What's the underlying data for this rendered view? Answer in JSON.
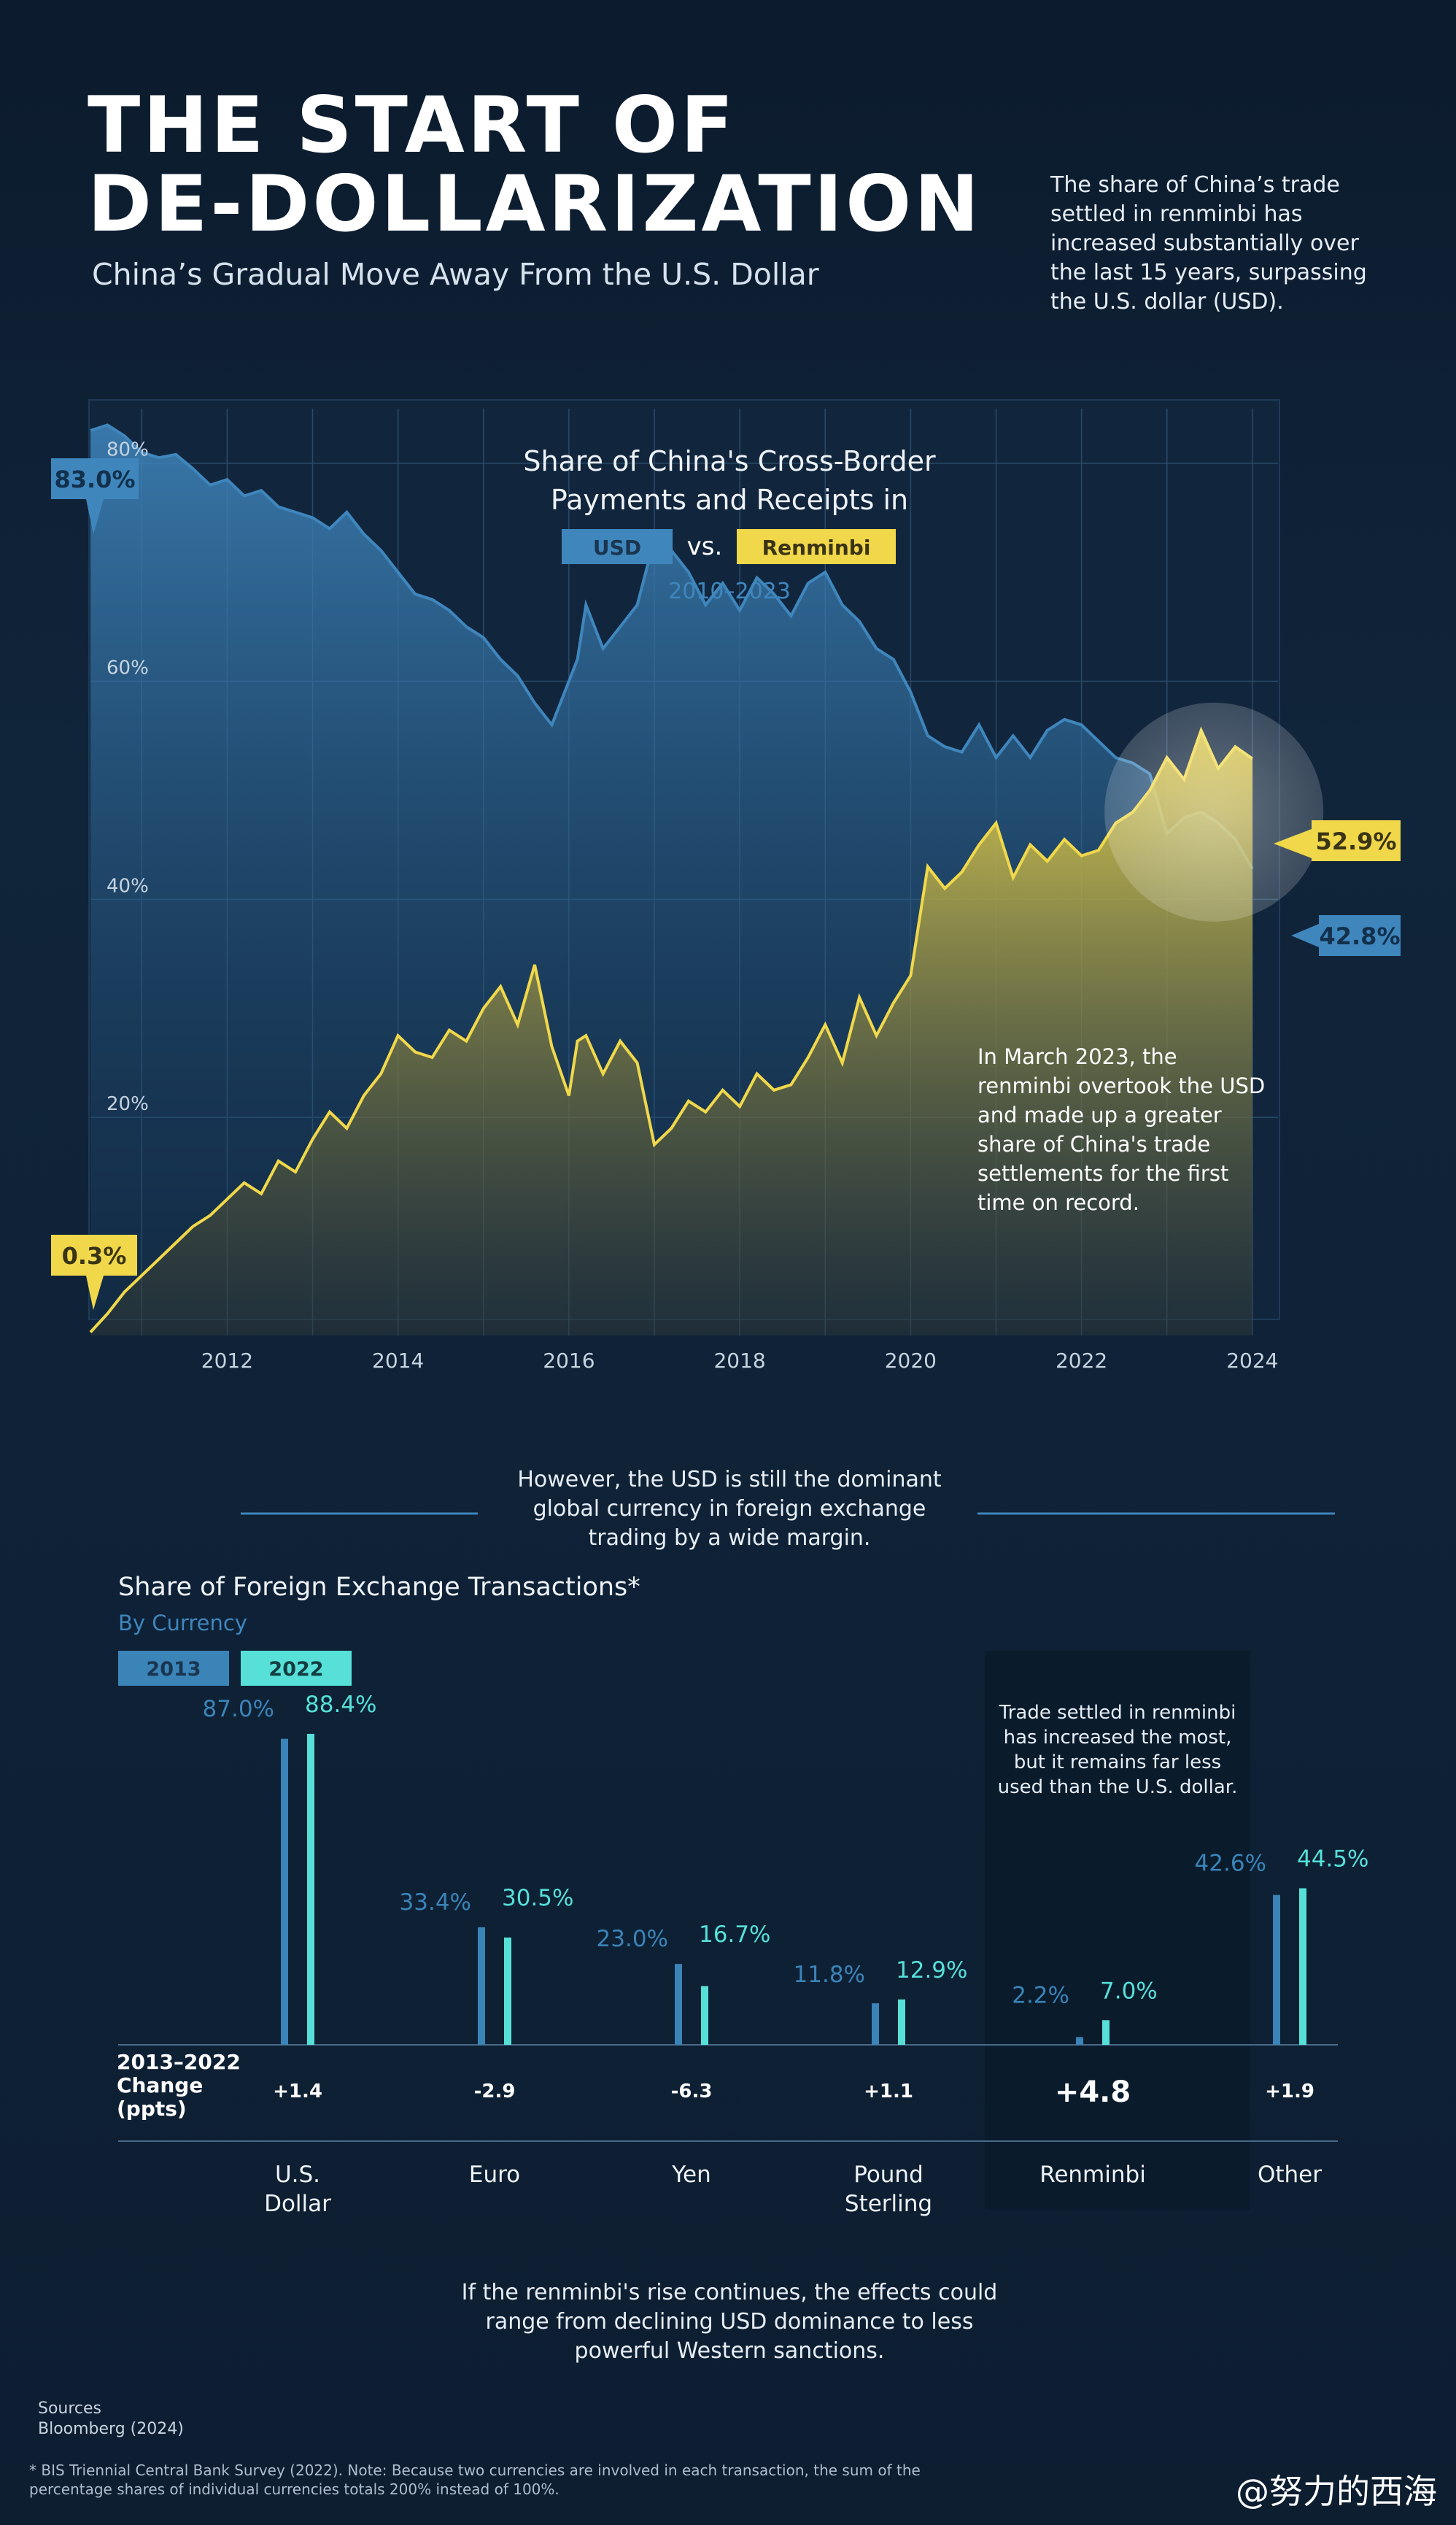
{
  "header": {
    "title_line1": "THE START OF",
    "title_line2": "DE-DOLLARIZATION",
    "subtitle": "China’s Gradual Move Away From the U.S. Dollar",
    "intro": "The share of China’s trade settled in renminbi has increased substantially over the last 15 years, surpassing the U.S. dollar (USD)."
  },
  "colors": {
    "usd": "#3f86bd",
    "renminbi": "#f0d84a",
    "yr2013": "#3a84b8",
    "yr2022": "#56e0d8",
    "background": "#0e2136"
  },
  "chart_data": [
    {
      "type": "area",
      "title_line1": "Share of China's Cross-Border",
      "title_line2": "Payments and Receipts in",
      "legend_usd": "USD",
      "legend_vs": "vs.",
      "legend_rmb": "Renminbi",
      "subtitle": "2010–2023",
      "xlim": [
        2010.4,
        2024.3
      ],
      "ylim": [
        0,
        85
      ],
      "yticks": [
        20,
        40,
        60,
        80
      ],
      "ytick_labels": [
        "20%",
        "40%",
        "60%",
        "80%"
      ],
      "xticks": [
        2012,
        2014,
        2016,
        2018,
        2020,
        2022,
        2024
      ],
      "xtick_labels": [
        "2012",
        "2014",
        "2016",
        "2018",
        "2020",
        "2022",
        "2024"
      ],
      "grid": true,
      "labels": {
        "usd_start": "83.0%",
        "rmb_start": "0.3%",
        "rmb_end": "52.9%",
        "usd_end": "42.8%"
      },
      "annotation": "In March 2023, the renminbi overtook the USD and made up a greater share of China's trade settlements for the first time on record.",
      "series": [
        {
          "name": "USD",
          "x": [
            2010.4,
            2010.6,
            2010.8,
            2011.0,
            2011.2,
            2011.4,
            2011.6,
            2011.8,
            2012.0,
            2012.2,
            2012.4,
            2012.6,
            2012.8,
            2013.0,
            2013.2,
            2013.4,
            2013.6,
            2013.8,
            2014.0,
            2014.2,
            2014.4,
            2014.6,
            2014.8,
            2015.0,
            2015.2,
            2015.4,
            2015.6,
            2015.8,
            2016.0,
            2016.1,
            2016.2,
            2016.4,
            2016.6,
            2016.8,
            2017.0,
            2017.2,
            2017.4,
            2017.6,
            2017.8,
            2018.0,
            2018.2,
            2018.4,
            2018.6,
            2018.8,
            2019.0,
            2019.2,
            2019.4,
            2019.6,
            2019.8,
            2020.0,
            2020.2,
            2020.4,
            2020.6,
            2020.8,
            2021.0,
            2021.2,
            2021.4,
            2021.6,
            2021.8,
            2022.0,
            2022.2,
            2022.4,
            2022.6,
            2022.8,
            2023.0,
            2023.2,
            2023.4,
            2023.6,
            2023.8,
            2024.0
          ],
          "values": [
            83.0,
            83.5,
            82.5,
            81.0,
            80.5,
            80.8,
            79.5,
            78.0,
            78.5,
            77.0,
            77.5,
            76.0,
            75.5,
            75.0,
            74.0,
            75.5,
            73.5,
            72.0,
            70.0,
            68.0,
            67.5,
            66.5,
            65.0,
            64.0,
            62.0,
            60.5,
            58.0,
            56.0,
            60.0,
            62.0,
            67.0,
            63.0,
            65.0,
            67.0,
            73.0,
            72.0,
            70.0,
            67.0,
            69.0,
            66.5,
            69.5,
            68.0,
            66.0,
            69.0,
            70.0,
            67.0,
            65.5,
            63.0,
            62.0,
            59.0,
            55.0,
            54.0,
            53.5,
            56.0,
            53.0,
            55.0,
            53.0,
            55.5,
            56.5,
            56.0,
            54.5,
            53.0,
            52.5,
            51.5,
            46.0,
            47.5,
            48.0,
            47.0,
            45.5,
            42.8
          ]
        },
        {
          "name": "Renminbi",
          "x": [
            2010.4,
            2010.6,
            2010.8,
            2011.0,
            2011.2,
            2011.4,
            2011.6,
            2011.8,
            2012.0,
            2012.2,
            2012.4,
            2012.6,
            2012.8,
            2013.0,
            2013.2,
            2013.4,
            2013.6,
            2013.8,
            2014.0,
            2014.2,
            2014.4,
            2014.6,
            2014.8,
            2015.0,
            2015.2,
            2015.4,
            2015.6,
            2015.8,
            2016.0,
            2016.1,
            2016.2,
            2016.4,
            2016.6,
            2016.8,
            2017.0,
            2017.2,
            2017.4,
            2017.6,
            2017.8,
            2018.0,
            2018.2,
            2018.4,
            2018.6,
            2018.8,
            2019.0,
            2019.2,
            2019.4,
            2019.6,
            2019.8,
            2020.0,
            2020.2,
            2020.4,
            2020.6,
            2020.8,
            2021.0,
            2021.2,
            2021.4,
            2021.6,
            2021.8,
            2022.0,
            2022.2,
            2022.4,
            2022.6,
            2022.8,
            2023.0,
            2023.2,
            2023.4,
            2023.6,
            2023.8,
            2024.0
          ],
          "values": [
            0.3,
            2.0,
            4.0,
            5.5,
            7.0,
            8.5,
            10.0,
            11.0,
            12.5,
            14.0,
            13.0,
            16.0,
            15.0,
            18.0,
            20.5,
            19.0,
            22.0,
            24.0,
            27.5,
            26.0,
            25.5,
            28.0,
            27.0,
            30.0,
            32.0,
            28.5,
            34.0,
            26.5,
            22.0,
            27.0,
            27.5,
            24.0,
            27.0,
            25.0,
            17.5,
            19.0,
            21.5,
            20.5,
            22.5,
            21.0,
            24.0,
            22.5,
            23.0,
            25.5,
            28.5,
            25.0,
            31.0,
            27.5,
            30.5,
            33.0,
            43.0,
            41.0,
            42.5,
            45.0,
            47.0,
            42.0,
            45.0,
            43.5,
            45.5,
            44.0,
            44.5,
            47.0,
            48.0,
            50.0,
            53.0,
            51.0,
            55.5,
            52.0,
            54.0,
            52.9
          ]
        }
      ]
    },
    {
      "type": "bar",
      "title": "Share of Foreign Exchange Transactions*",
      "subtitle": "By Currency",
      "legend": [
        "2013",
        "2022"
      ],
      "categories": [
        "U.S.\nDollar",
        "Euro",
        "Yen",
        "Pound\nSterling",
        "Renminbi",
        "Other"
      ],
      "series": [
        {
          "name": "2013",
          "values": [
            87.0,
            33.4,
            23.0,
            11.8,
            2.2,
            42.6
          ]
        },
        {
          "name": "2022",
          "values": [
            88.4,
            30.5,
            16.7,
            12.9,
            7.0,
            44.5
          ]
        }
      ],
      "value_labels_2013": [
        "87.0%",
        "33.4%",
        "23.0%",
        "11.8%",
        "2.2%",
        "42.6%"
      ],
      "value_labels_2022": [
        "88.4%",
        "30.5%",
        "16.7%",
        "12.9%",
        "7.0%",
        "44.5%"
      ],
      "change_label": "2013–2022 Change (ppts)",
      "change_values": [
        "+1.4",
        "-2.9",
        "-6.3",
        "+1.1",
        "+4.8",
        "+1.9"
      ],
      "ylim": [
        0,
        100
      ],
      "highlight_note": "Trade settled in renminbi has increased the most, but it remains far less used than the U.S. dollar."
    }
  ],
  "section2_intro": "However, the USD is still the dominant global currency in foreign exchange trading by a wide margin.",
  "closing": "If the renminbi's rise continues, the effects could range from declining USD dominance to less powerful Western sanctions.",
  "sources_label": "Sources",
  "sources": "Bloomberg (2024)",
  "footnote": "* BIS Triennial Central Bank Survey (2022). Note: Because two currencies are involved in each transaction, the sum of the percentage shares of individual currencies totals 200% instead of 100%.",
  "watermark": "@努力的西海"
}
